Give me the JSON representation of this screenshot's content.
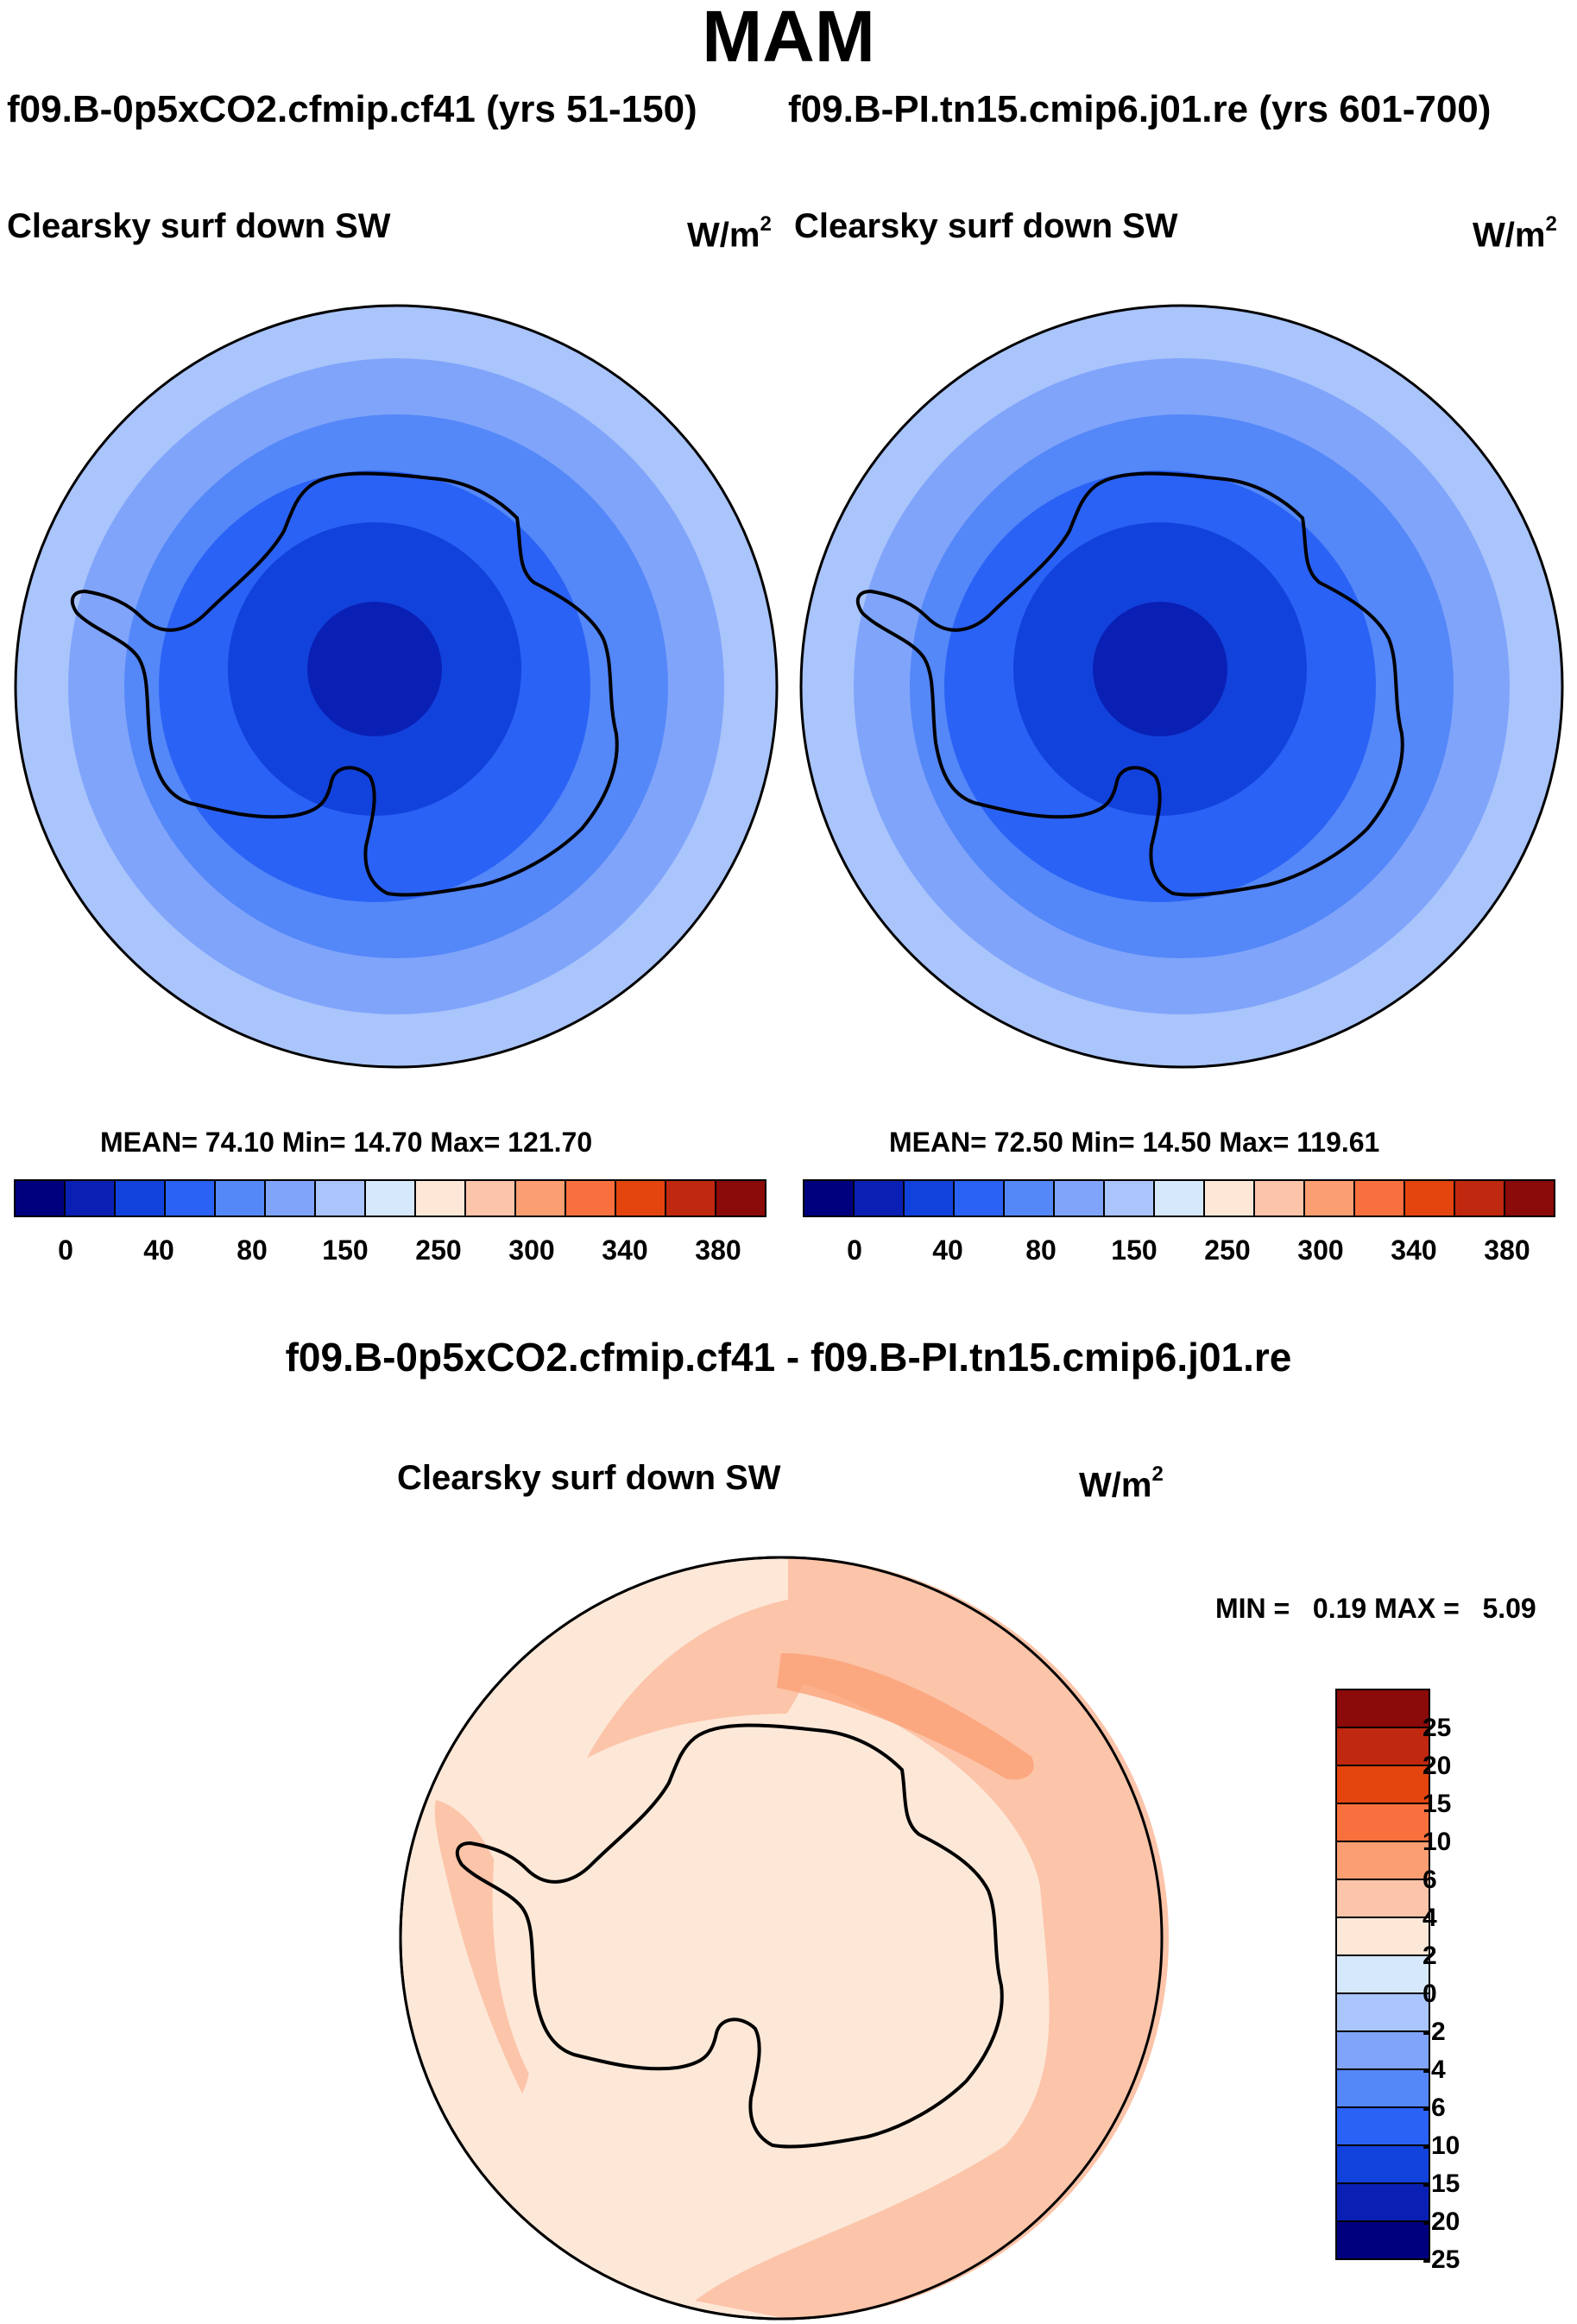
{
  "title": "MAM",
  "subtitles": {
    "left": "f09.B-0p5xCO2.cfmip.cf41 (yrs 51-150)",
    "right": "f09.B-PI.tn15.cmip6.j01.re (yrs 601-700)"
  },
  "colors": {
    "abs_palette": [
      "#00007f",
      "#0a20b5",
      "#1242dc",
      "#2a62f5",
      "#5487f8",
      "#7fa4fa",
      "#aac4fc",
      "#d6e8fc",
      "#fde8d8",
      "#fcc4a9",
      "#fb9e72",
      "#f8703d",
      "#e4440e",
      "#c02810",
      "#8b0a0a"
    ],
    "diff_palette": [
      "#00007f",
      "#0a20b5",
      "#1242dc",
      "#2a62f5",
      "#5487f8",
      "#7fa4fa",
      "#aac4fc",
      "#d6e8fc",
      "#fde8d8",
      "#fcc4a9",
      "#fb9e72",
      "#f8703d",
      "#e4440e",
      "#c02810",
      "#8b0a0a"
    ],
    "outline": "#000000"
  },
  "panels": [
    {
      "field": "Clearsky surf down SW",
      "units": "W/m",
      "units_exp": "2",
      "stats": "MEAN=  74.10  Min=  14.70  Max= 121.70",
      "mean": 74.1,
      "min": 14.7,
      "max": 121.7,
      "colorbar_labels": [
        "0",
        "40",
        "80",
        "150",
        "250",
        "300",
        "340",
        "380"
      ]
    },
    {
      "field": "Clearsky surf down SW",
      "units": "W/m",
      "units_exp": "2",
      "stats": "MEAN=  72.50  Min=  14.50  Max= 119.61",
      "mean": 72.5,
      "min": 14.5,
      "max": 119.61,
      "colorbar_labels": [
        "0",
        "40",
        "80",
        "150",
        "250",
        "300",
        "340",
        "380"
      ]
    }
  ],
  "difference": {
    "title": "f09.B-0p5xCO2.cfmip.cf41 - f09.B-PI.tn15.cmip6.j01.re",
    "field": "Clearsky surf down SW",
    "units": "W/m",
    "units_exp": "2",
    "stats": "MIN =   0.19 MAX =   5.09",
    "min": 0.19,
    "max": 5.09,
    "colorbar_labels": [
      "25",
      "20",
      "15",
      "10",
      "6",
      "4",
      "2",
      "0",
      "-2",
      "-4",
      "-6",
      "-10",
      "-15",
      "-20",
      "-25"
    ]
  },
  "chart_data": [
    {
      "type": "heatmap",
      "title": "Clearsky surf down SW",
      "subtitle": "f09.B-0p5xCO2.cfmip.cf41 (yrs 51-150)",
      "units": "W/m2",
      "projection": "south polar stereographic",
      "contour_levels": [
        0,
        20,
        40,
        60,
        80,
        100,
        150,
        200,
        250,
        275,
        300,
        320,
        340,
        360,
        380
      ],
      "mean": 74.1,
      "min": 14.7,
      "max": 121.7
    },
    {
      "type": "heatmap",
      "title": "Clearsky surf down SW",
      "subtitle": "f09.B-PI.tn15.cmip6.j01.re (yrs 601-700)",
      "units": "W/m2",
      "projection": "south polar stereographic",
      "contour_levels": [
        0,
        20,
        40,
        60,
        80,
        100,
        150,
        200,
        250,
        275,
        300,
        320,
        340,
        360,
        380
      ],
      "mean": 72.5,
      "min": 14.5,
      "max": 119.61
    },
    {
      "type": "heatmap",
      "title": "Clearsky surf down SW",
      "subtitle": "f09.B-0p5xCO2.cfmip.cf41 - f09.B-PI.tn15.cmip6.j01.re",
      "units": "W/m2",
      "projection": "south polar stereographic",
      "contour_levels": [
        -25,
        -20,
        -15,
        -10,
        -6,
        -4,
        -2,
        0,
        2,
        4,
        6,
        10,
        15,
        20,
        25
      ],
      "min": 0.19,
      "max": 5.09
    }
  ]
}
